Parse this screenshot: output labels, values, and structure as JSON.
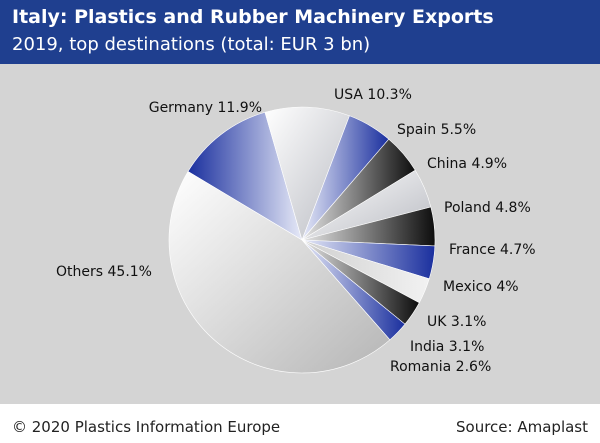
{
  "header": {
    "title": "Italy: Plastics and Rubber Machinery Exports",
    "subtitle": "2019, top destinations (total: EUR 3 bn)"
  },
  "footer": {
    "credit": "© 2020 Plastics Information Europe",
    "source": "Source: Amaplast"
  },
  "colors": {
    "header_bg": "#1f3f8f",
    "plot_bg": "#d4d4d4",
    "accent_blue": "#1a2f9e",
    "black": "#111111"
  },
  "chart_data": {
    "type": "pie",
    "title": "Italy: Plastics and Rubber Machinery Exports",
    "subtitle": "2019, top destinations (total: EUR 3 bn)",
    "unit": "%",
    "slices": [
      {
        "label": "Germany",
        "value": 11.9,
        "display": "Germany 11.9%"
      },
      {
        "label": "USA",
        "value": 10.3,
        "display": "USA 10.3%"
      },
      {
        "label": "Spain",
        "value": 5.5,
        "display": "Spain 5.5%"
      },
      {
        "label": "China",
        "value": 4.9,
        "display": "China 4.9%"
      },
      {
        "label": "Poland",
        "value": 4.8,
        "display": "Poland 4.8%"
      },
      {
        "label": "France",
        "value": 4.7,
        "display": "France 4.7%"
      },
      {
        "label": "Mexico",
        "value": 4,
        "display": "Mexico 4%"
      },
      {
        "label": "UK",
        "value": 3.1,
        "display": "UK 3.1%"
      },
      {
        "label": "India",
        "value": 3.1,
        "display": "India 3.1%"
      },
      {
        "label": "Romania",
        "value": 2.6,
        "display": "Romania 2.6%"
      },
      {
        "label": "Others",
        "value": 45.1,
        "display": "Others 45.1%"
      }
    ]
  }
}
